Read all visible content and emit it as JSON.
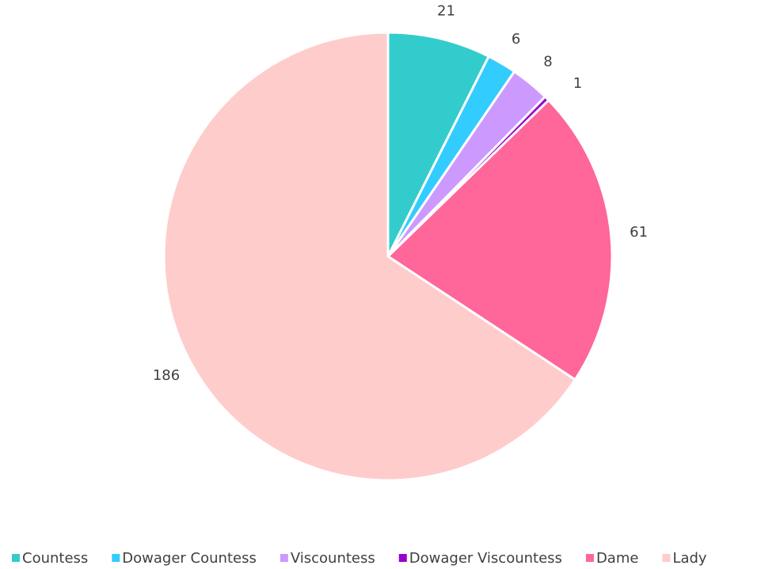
{
  "chart_data": {
    "type": "pie",
    "categories": [
      "Countess",
      "Dowager Countess",
      "Viscountess",
      "Dowager Viscountess",
      "Dame",
      "Lady"
    ],
    "values": [
      21,
      6,
      8,
      1,
      61,
      186
    ],
    "colors": [
      "#33cccc",
      "#33ccff",
      "#cc99ff",
      "#9900cc",
      "#ff6699",
      "#ffcccc"
    ],
    "legend": "bottom"
  }
}
